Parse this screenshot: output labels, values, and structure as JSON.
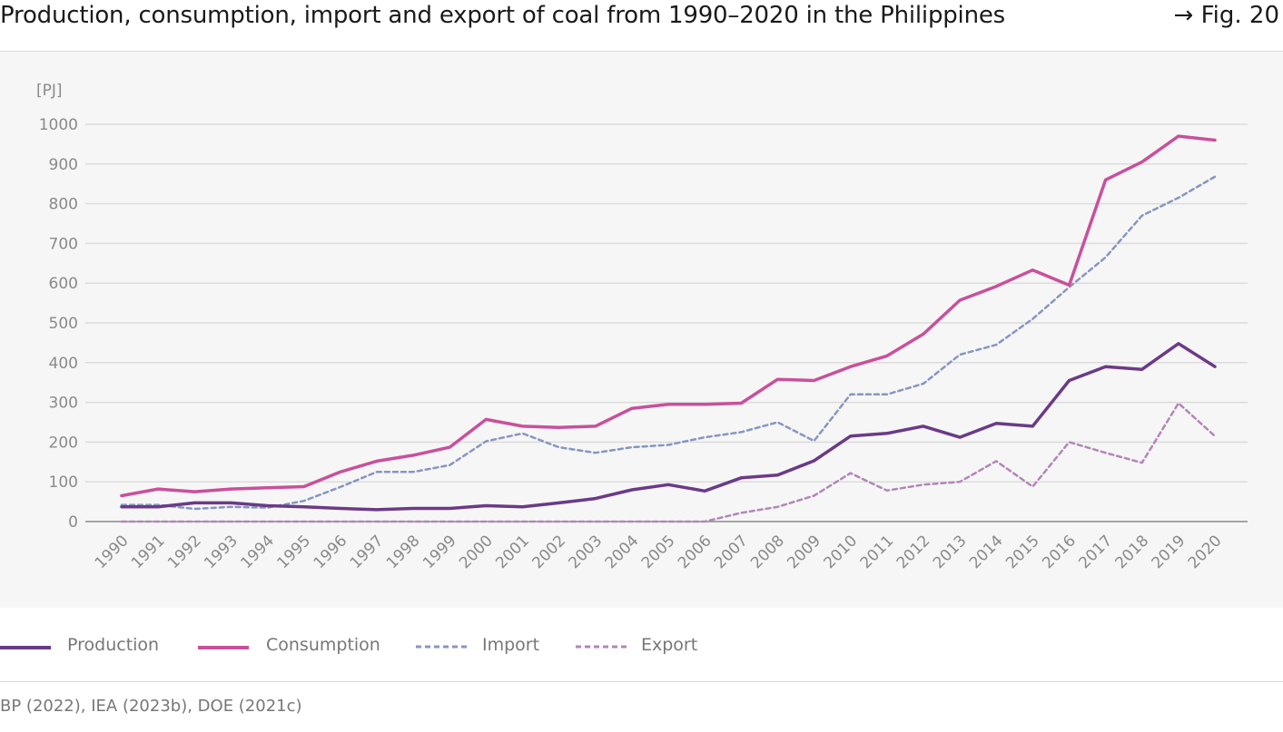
{
  "header": {
    "title": "Production, consumption, import and export of coal from 1990–2020 in the Philippines",
    "fig_ref": "→ Fig. 20"
  },
  "chart_data": {
    "type": "line",
    "unit_label": "[PJ]",
    "ylim": [
      0,
      1000
    ],
    "yticks": [
      0,
      100,
      200,
      300,
      400,
      500,
      600,
      700,
      800,
      900,
      1000
    ],
    "grid": true,
    "legend_position": "bottom",
    "categories": [
      "1990",
      "1991",
      "1992",
      "1993",
      "1994",
      "1995",
      "1996",
      "1997",
      "1998",
      "1999",
      "2000",
      "2001",
      "2002",
      "2003",
      "2004",
      "2005",
      "2006",
      "2007",
      "2008",
      "2009",
      "2010",
      "2011",
      "2012",
      "2013",
      "2014",
      "2015",
      "2016",
      "2017",
      "2018",
      "2019",
      "2020"
    ],
    "series": [
      {
        "name": "Production",
        "color": "#6b3a87",
        "style": "solid",
        "values": [
          37,
          37,
          47,
          47,
          40,
          37,
          33,
          30,
          33,
          33,
          40,
          37,
          47,
          58,
          80,
          93,
          77,
          110,
          117,
          153,
          215,
          222,
          240,
          212,
          247,
          240,
          355,
          390,
          383,
          448,
          390
        ]
      },
      {
        "name": "Consumption",
        "color": "#c9509b",
        "style": "solid",
        "values": [
          65,
          82,
          75,
          82,
          85,
          88,
          125,
          152,
          167,
          187,
          257,
          240,
          237,
          240,
          285,
          295,
          295,
          298,
          358,
          355,
          390,
          417,
          472,
          557,
          592,
          633,
          595,
          860,
          905,
          970,
          960
        ]
      },
      {
        "name": "Import",
        "color": "#8896c0",
        "style": "dashed",
        "values": [
          42,
          42,
          32,
          37,
          35,
          52,
          87,
          125,
          125,
          142,
          202,
          222,
          187,
          173,
          187,
          193,
          212,
          225,
          250,
          203,
          320,
          320,
          347,
          420,
          445,
          510,
          590,
          665,
          770,
          815,
          868
        ]
      },
      {
        "name": "Export",
        "color": "#b286b8",
        "style": "dashed",
        "values": [
          0,
          0,
          0,
          0,
          0,
          0,
          0,
          0,
          0,
          0,
          0,
          0,
          0,
          0,
          0,
          0,
          0,
          22,
          37,
          65,
          122,
          78,
          93,
          100,
          152,
          88,
          200,
          173,
          148,
          298,
          215
        ]
      }
    ]
  },
  "source": "BP (2022), IEA (2023b), DOE (2021c)"
}
